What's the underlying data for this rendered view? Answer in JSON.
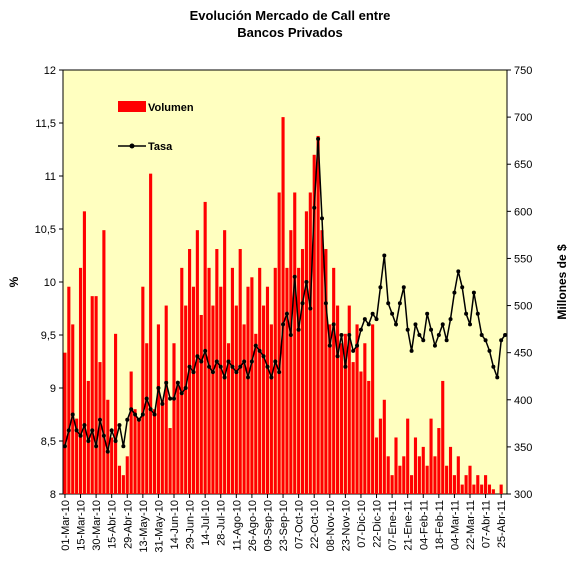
{
  "chart_data": {
    "type": "bar-line",
    "title": [
      "Evolución Mercado de Call entre",
      "Bancos Privados"
    ],
    "y_label": "%",
    "y2_label": "Millones de $",
    "categories": [
      "01-Mar-10",
      null,
      null,
      null,
      "15-Mar-10",
      null,
      null,
      null,
      "30-Mar-10",
      null,
      null,
      null,
      "15-Abr-10",
      null,
      null,
      null,
      "29-Abr-10",
      null,
      null,
      null,
      "13-May-10",
      null,
      null,
      null,
      "31-May-10",
      null,
      null,
      null,
      "14-Jun-10",
      null,
      null,
      null,
      "29-Jun-10",
      null,
      null,
      null,
      "14-Jul-10",
      null,
      null,
      null,
      "28-Jul-10",
      null,
      null,
      null,
      "11-Ago-10",
      null,
      null,
      null,
      "26-Ago-10",
      null,
      null,
      null,
      "09-Sep-10",
      null,
      null,
      null,
      "23-Sep-10",
      null,
      null,
      null,
      "07-Oct-10",
      null,
      null,
      null,
      "22-Oct-10",
      null,
      null,
      null,
      "08-Nov-10",
      null,
      null,
      null,
      "23-Nov-10",
      null,
      null,
      null,
      "07-Dic-10",
      null,
      null,
      null,
      "22-Dic-10",
      null,
      null,
      null,
      "07-Ene-11",
      null,
      null,
      null,
      "21-Ene-11",
      null,
      null,
      null,
      "04-Feb-11",
      null,
      null,
      null,
      "18-Feb-11",
      null,
      null,
      null,
      "04-Mar-11",
      null,
      null,
      null,
      "22-Mar-11",
      null,
      null,
      null,
      "07-Abr-11",
      null,
      null,
      null,
      "25-Abr-11",
      null
    ],
    "series": [
      {
        "name": "Volumen",
        "type": "bar",
        "axis": "y2",
        "color": "#ff0000",
        "values": [
          450,
          520,
          480,
          380,
          540,
          600,
          420,
          510,
          510,
          440,
          580,
          400,
          360,
          470,
          330,
          320,
          340,
          430,
          390,
          380,
          520,
          460,
          640,
          390,
          480,
          400,
          500,
          370,
          460,
          420,
          540,
          500,
          560,
          520,
          580,
          490,
          610,
          540,
          500,
          560,
          520,
          580,
          460,
          540,
          500,
          560,
          480,
          520,
          530,
          470,
          540,
          500,
          520,
          480,
          540,
          620,
          700,
          540,
          580,
          620,
          540,
          560,
          600,
          620,
          660,
          680,
          580,
          560,
          480,
          540,
          500,
          460,
          470,
          500,
          440,
          480,
          430,
          460,
          420,
          480,
          360,
          380,
          400,
          340,
          320,
          360,
          330,
          340,
          380,
          320,
          360,
          340,
          350,
          330,
          380,
          340,
          370,
          420,
          330,
          350,
          320,
          340,
          310,
          320,
          330,
          310,
          320,
          310,
          320,
          310,
          305,
          300,
          310,
          300
        ]
      },
      {
        "name": "Tasa",
        "type": "line",
        "axis": "y",
        "color": "#000000",
        "values": [
          8.45,
          8.6,
          8.75,
          8.6,
          8.55,
          8.65,
          8.5,
          8.6,
          8.45,
          8.7,
          8.55,
          8.4,
          8.6,
          8.5,
          8.65,
          8.45,
          8.7,
          8.8,
          8.75,
          8.7,
          8.75,
          8.9,
          8.8,
          8.75,
          9.0,
          8.85,
          9.05,
          8.9,
          8.9,
          9.05,
          8.95,
          9.0,
          9.2,
          9.15,
          9.3,
          9.25,
          9.35,
          9.2,
          9.15,
          9.25,
          9.2,
          9.1,
          9.25,
          9.2,
          9.15,
          9.2,
          9.25,
          9.1,
          9.25,
          9.4,
          9.35,
          9.3,
          9.2,
          9.1,
          9.25,
          9.15,
          9.6,
          9.7,
          9.5,
          10.05,
          9.55,
          9.8,
          10.0,
          9.75,
          10.7,
          11.35,
          10.6,
          9.8,
          9.4,
          9.6,
          9.3,
          9.5,
          9.2,
          9.5,
          9.35,
          9.4,
          9.55,
          9.65,
          9.6,
          9.7,
          9.65,
          9.95,
          10.25,
          9.8,
          9.7,
          9.6,
          9.8,
          9.95,
          9.55,
          9.35,
          9.6,
          9.5,
          9.45,
          9.7,
          9.55,
          9.4,
          9.5,
          9.6,
          9.45,
          9.65,
          9.9,
          10.1,
          9.95,
          9.7,
          9.6,
          9.9,
          9.7,
          9.5,
          9.45,
          9.35,
          9.2,
          9.1,
          9.45,
          9.5
        ]
      }
    ],
    "ylim": [
      8,
      12
    ],
    "yticks": [
      8,
      {
        "value": 8.5,
        "label": "8,5"
      },
      9,
      {
        "value": 9.5,
        "label": "9,5"
      },
      10,
      {
        "value": 10.5,
        "label": "10,5"
      },
      11,
      {
        "value": 11.5,
        "label": "11,5"
      },
      12
    ],
    "y2lim": [
      300,
      750
    ],
    "y2ticks": [
      300,
      350,
      400,
      450,
      500,
      550,
      600,
      650,
      700,
      750
    ],
    "plot_background": "#ffffc0"
  }
}
